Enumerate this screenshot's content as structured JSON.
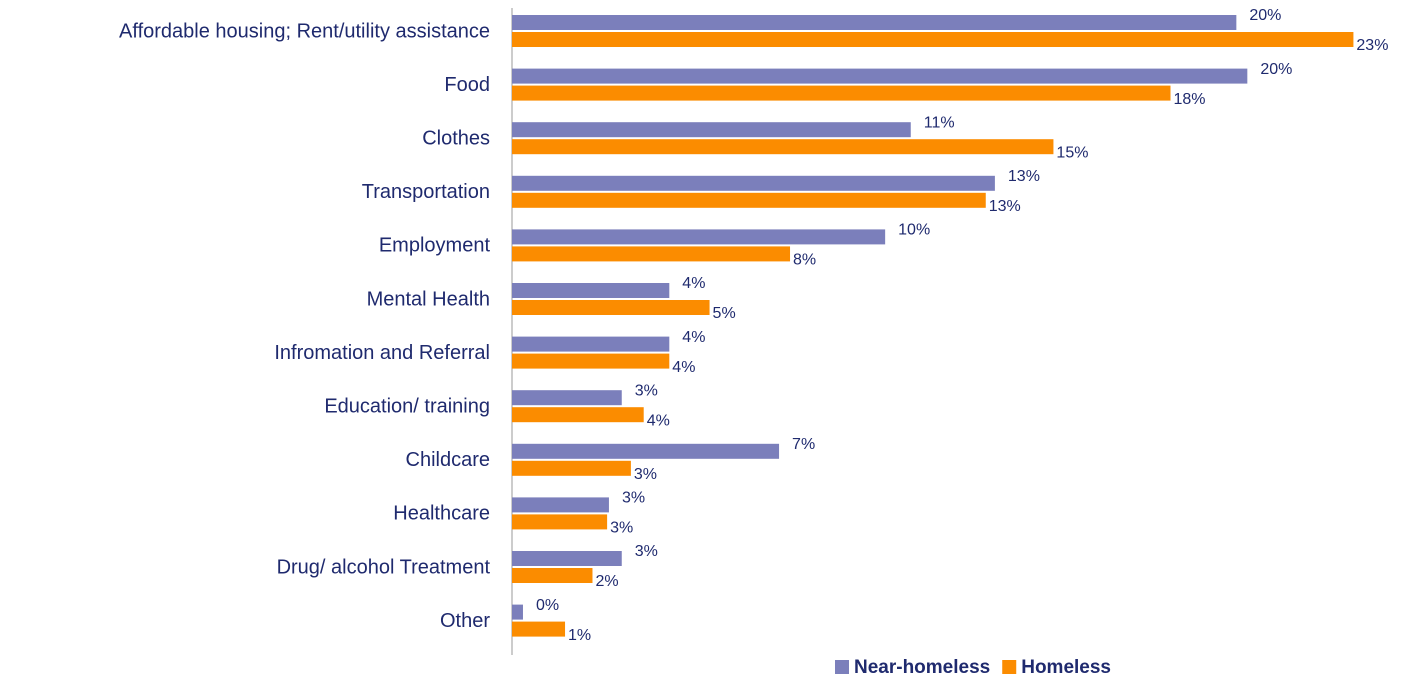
{
  "chart_data": {
    "type": "bar",
    "orientation": "horizontal",
    "categories": [
      "Affordable housing; Rent/utility assistance",
      "Food",
      "Clothes",
      "Transportation ",
      "Employment",
      "Mental Health ",
      "Infromation and Referral ",
      "Education/ training ",
      "Childcare",
      "Healthcare",
      "Drug/ alcohol Treatment",
      "Other "
    ],
    "series": [
      {
        "name": "Near-homeless",
        "color": "#7b7fbb",
        "values": [
          19.8,
          20.1,
          10.9,
          13.2,
          10.2,
          4.3,
          4.3,
          3.0,
          7.3,
          2.65,
          3.0,
          0.3
        ],
        "value_labels": [
          "20%",
          "20%",
          "11%",
          "13%",
          "10%",
          "4%",
          "4%",
          "3%",
          "7%",
          "3%",
          "3%",
          "0%"
        ]
      },
      {
        "name": "Homeless",
        "color": "#fb8c00",
        "values": [
          23.0,
          18.0,
          14.8,
          12.95,
          7.6,
          5.4,
          4.3,
          3.6,
          3.25,
          2.6,
          2.2,
          1.45
        ],
        "value_labels": [
          "23%",
          "18%",
          "15%",
          "13%",
          "8%",
          "5%",
          "4%",
          "4%",
          "3%",
          "3%",
          "2%",
          "1%"
        ]
      }
    ],
    "xlim": [
      0,
      24
    ],
    "legend": "bottom"
  }
}
